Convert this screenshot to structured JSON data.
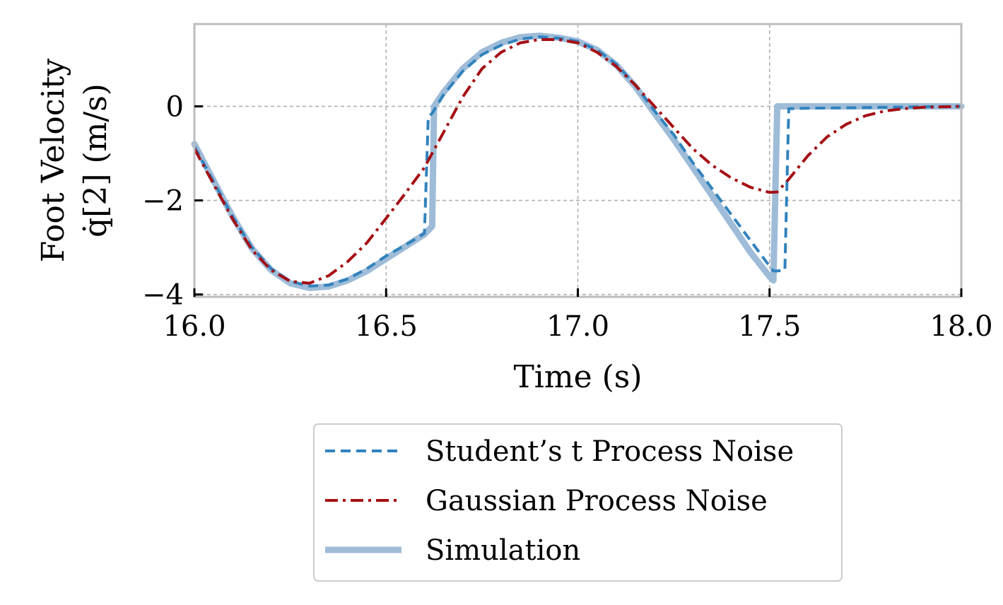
{
  "chart_data": {
    "type": "line",
    "title": "",
    "xlabel": "Time (s)",
    "ylabel": [
      "Foot Velocity",
      "q̇[2] (m/s)"
    ],
    "xlim": [
      16.0,
      18.0
    ],
    "ylim": [
      -4.05,
      1.75
    ],
    "xticks": [
      16.0,
      16.5,
      17.0,
      17.5,
      18.0
    ],
    "xtick_labels": [
      "16.0",
      "16.5",
      "17.0",
      "17.5",
      "18.0"
    ],
    "yticks": [
      0,
      -2,
      -4
    ],
    "ytick_labels": [
      "0",
      "−2",
      "−4"
    ],
    "grid": true,
    "legend_position": "bottom-center",
    "series": [
      {
        "name": "Student’s t Process Noise",
        "color": "#3182bd",
        "style": "dashed",
        "x": [
          16.0,
          16.05,
          16.1,
          16.15,
          16.2,
          16.25,
          16.3,
          16.35,
          16.4,
          16.45,
          16.5,
          16.55,
          16.6,
          16.61,
          16.62,
          16.65,
          16.7,
          16.75,
          16.8,
          16.85,
          16.9,
          16.95,
          17.0,
          17.05,
          17.1,
          17.15,
          17.2,
          17.25,
          17.3,
          17.35,
          17.4,
          17.45,
          17.5,
          17.51,
          17.52,
          17.54,
          17.55,
          17.6,
          17.7,
          17.8,
          17.9,
          18.0
        ],
        "y": [
          -0.85,
          -1.6,
          -2.35,
          -3.0,
          -3.45,
          -3.72,
          -3.82,
          -3.8,
          -3.67,
          -3.45,
          -3.18,
          -2.95,
          -2.7,
          -0.22,
          -0.15,
          0.25,
          0.75,
          1.1,
          1.3,
          1.43,
          1.48,
          1.45,
          1.38,
          1.2,
          0.9,
          0.45,
          -0.1,
          -0.6,
          -1.2,
          -1.75,
          -2.3,
          -2.85,
          -3.4,
          -3.5,
          -3.5,
          -3.48,
          -0.05,
          -0.04,
          -0.03,
          -0.02,
          -0.01,
          0.0
        ]
      },
      {
        "name": "Gaussian Process Noise",
        "color": "#a50f15",
        "style": "dashdot",
        "x": [
          16.0,
          16.05,
          16.1,
          16.15,
          16.2,
          16.25,
          16.3,
          16.35,
          16.4,
          16.45,
          16.5,
          16.55,
          16.6,
          16.65,
          16.7,
          16.75,
          16.8,
          16.85,
          16.9,
          16.95,
          17.0,
          17.05,
          17.1,
          17.15,
          17.2,
          17.25,
          17.3,
          17.35,
          17.4,
          17.45,
          17.5,
          17.52,
          17.55,
          17.6,
          17.65,
          17.7,
          17.75,
          17.8,
          17.85,
          17.9,
          17.95,
          18.0
        ],
        "y": [
          -0.9,
          -1.65,
          -2.4,
          -3.05,
          -3.48,
          -3.72,
          -3.76,
          -3.6,
          -3.3,
          -2.9,
          -2.38,
          -1.85,
          -1.3,
          -0.55,
          0.2,
          0.8,
          1.15,
          1.35,
          1.42,
          1.42,
          1.35,
          1.15,
          0.85,
          0.45,
          0.0,
          -0.45,
          -0.9,
          -1.25,
          -1.52,
          -1.72,
          -1.83,
          -1.82,
          -1.55,
          -1.05,
          -0.65,
          -0.38,
          -0.2,
          -0.1,
          -0.05,
          -0.02,
          -0.01,
          0.0
        ]
      },
      {
        "name": "Simulation",
        "color": "#9ebcd8",
        "style": "solid",
        "x": [
          16.0,
          16.05,
          16.1,
          16.15,
          16.2,
          16.25,
          16.3,
          16.35,
          16.4,
          16.45,
          16.5,
          16.55,
          16.6,
          16.62,
          16.625,
          16.65,
          16.7,
          16.75,
          16.8,
          16.85,
          16.9,
          16.95,
          17.0,
          17.05,
          17.1,
          17.15,
          17.2,
          17.25,
          17.3,
          17.35,
          17.4,
          17.45,
          17.5,
          17.51,
          17.52,
          17.6,
          17.7,
          17.8,
          17.9,
          18.0
        ],
        "y": [
          -0.8,
          -1.58,
          -2.35,
          -3.02,
          -3.48,
          -3.76,
          -3.86,
          -3.83,
          -3.7,
          -3.5,
          -3.24,
          -2.98,
          -2.72,
          -2.55,
          0.0,
          0.3,
          0.8,
          1.15,
          1.35,
          1.47,
          1.5,
          1.46,
          1.38,
          1.2,
          0.88,
          0.42,
          -0.15,
          -0.7,
          -1.3,
          -1.9,
          -2.5,
          -3.1,
          -3.62,
          -3.7,
          0.0,
          0.0,
          0.0,
          0.0,
          0.0,
          0.0
        ]
      }
    ]
  }
}
